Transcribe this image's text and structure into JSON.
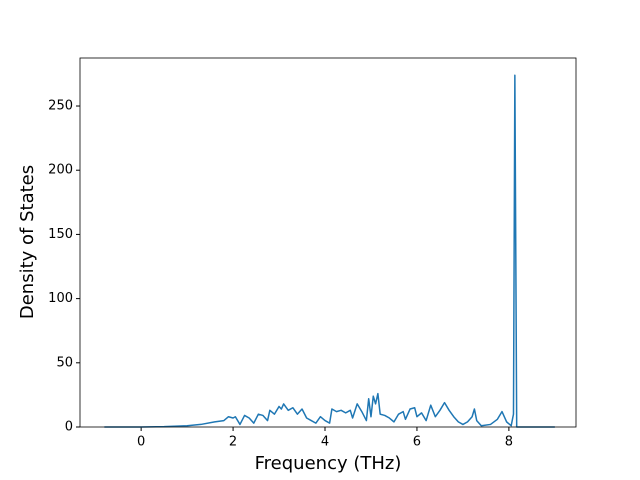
{
  "chart_data": {
    "type": "line",
    "x_label": "Frequency (THz)",
    "y_label": "Density of States",
    "x": [
      -0.8,
      0,
      0.5,
      1.0,
      1.3,
      1.6,
      1.8,
      1.9,
      2.0,
      2.05,
      2.15,
      2.25,
      2.35,
      2.45,
      2.55,
      2.65,
      2.75,
      2.8,
      2.9,
      3.0,
      3.05,
      3.1,
      3.2,
      3.3,
      3.4,
      3.5,
      3.6,
      3.7,
      3.8,
      3.9,
      4.0,
      4.1,
      4.15,
      4.25,
      4.35,
      4.45,
      4.55,
      4.6,
      4.7,
      4.8,
      4.9,
      4.95,
      5.0,
      5.05,
      5.1,
      5.15,
      5.2,
      5.3,
      5.4,
      5.5,
      5.6,
      5.7,
      5.75,
      5.85,
      5.95,
      6.0,
      6.1,
      6.2,
      6.3,
      6.4,
      6.5,
      6.6,
      6.7,
      6.8,
      6.9,
      7.0,
      7.1,
      7.2,
      7.25,
      7.3,
      7.4,
      7.6,
      7.75,
      7.85,
      7.95,
      8.05,
      8.1,
      8.13,
      8.17,
      8.5,
      9.0
    ],
    "series": [
      {
        "color": "#1f77b4",
        "values": [
          0,
          0,
          0.3,
          1,
          2,
          4,
          5,
          8,
          7,
          8,
          2,
          9,
          7,
          3,
          10,
          9,
          5,
          13,
          10,
          16,
          14,
          18,
          13,
          15,
          10,
          14,
          7,
          5,
          3,
          8,
          5,
          3,
          14,
          12,
          13,
          11,
          13,
          7,
          18,
          12,
          5,
          22,
          8,
          24,
          18,
          26,
          10,
          9,
          7,
          4,
          10,
          12,
          6,
          14,
          15,
          8,
          11,
          5,
          17,
          8,
          13,
          19,
          13,
          8,
          4,
          2,
          4,
          8,
          14,
          5,
          1,
          2,
          6,
          12,
          4,
          1,
          10,
          274,
          0,
          0,
          0
        ]
      }
    ],
    "xlim": [
      -1.33,
      9.46
    ],
    "ylim": [
      0,
      287.4
    ],
    "xticks": [
      0,
      2,
      4,
      6,
      8
    ],
    "yticks": [
      0,
      50,
      100,
      150,
      200,
      250
    ]
  }
}
